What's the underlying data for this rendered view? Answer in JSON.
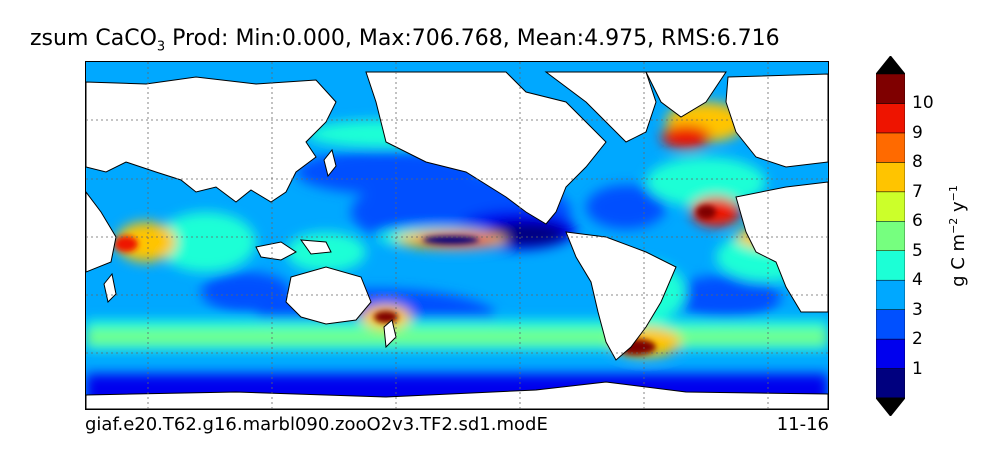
{
  "map": {
    "title_prefix": "zsum CaCO",
    "title_subscript": "3",
    "title_suffix": " Prod: Min:0.000, Max:706.768, Mean:4.975, RMS:6.716",
    "case_name": "giaf.e20.T62.g16.marbl090.zooO2v3.TF2.sd1.modE",
    "years": "11-16",
    "field": "zsum CaCO3 Prod",
    "stats": {
      "min": 0.0,
      "max": 706.768,
      "mean": 4.975,
      "rms": 6.716
    },
    "land_color": "#ffffff",
    "grid": true
  },
  "colorbar": {
    "units_main": "g C m",
    "units_exp1": "−2",
    "units_mid": " y",
    "units_exp2": "−1",
    "levels": [
      "1",
      "2",
      "3",
      "4",
      "5",
      "6",
      "7",
      "8",
      "9",
      "10"
    ],
    "colors": [
      "#00007f",
      "#0000ee",
      "#0050ff",
      "#00a8ff",
      "#1cffd6",
      "#76ff7f",
      "#ccff2a",
      "#ffc400",
      "#ff6a00",
      "#ee1400",
      "#7f0000"
    ],
    "extend": "both"
  }
}
